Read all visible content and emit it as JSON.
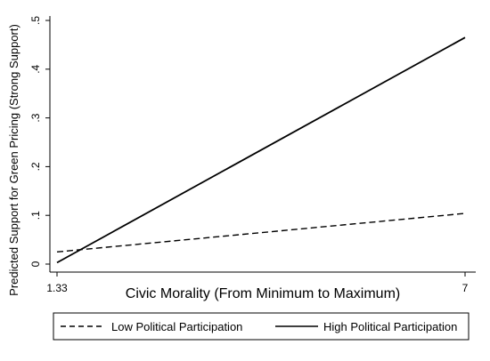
{
  "chart_data": {
    "type": "line",
    "title": "",
    "xlabel": "Civic Morality (From Minimum to Maximum)",
    "ylabel": "Predicted Support for Green Pricing (Strong Support)",
    "x_ticks": [
      "1.33",
      "7"
    ],
    "y_ticks": [
      "0",
      ".1",
      ".2",
      ".3",
      ".4",
      ".5"
    ],
    "xlim": [
      1.33,
      7
    ],
    "ylim": [
      0,
      0.5
    ],
    "grid": false,
    "legend_position": "bottom",
    "series": [
      {
        "name": "Low Political Participation",
        "style": "dashed",
        "x": [
          1.33,
          7
        ],
        "y": [
          0.025,
          0.104
        ]
      },
      {
        "name": "High Political Participation",
        "style": "solid",
        "x": [
          1.33,
          7
        ],
        "y": [
          0.003,
          0.465
        ]
      }
    ],
    "colors": {
      "line": "#000000",
      "axis": "#000000",
      "background": "#ffffff"
    }
  }
}
